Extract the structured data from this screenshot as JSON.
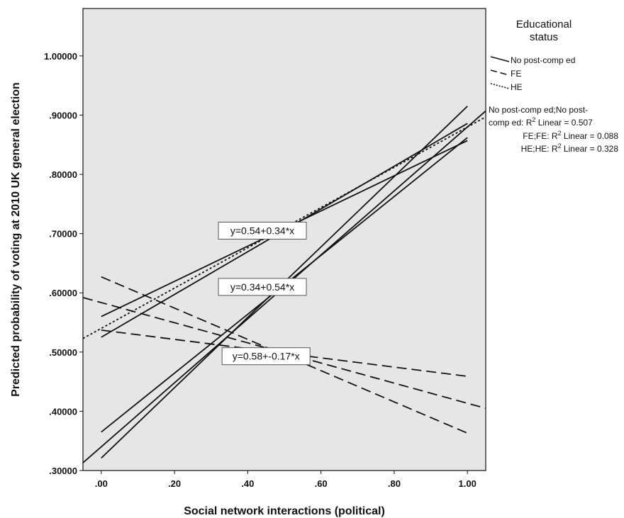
{
  "chart_data": {
    "type": "line",
    "xlabel": "Social network interactions (political)",
    "ylabel": "Predicted probability of voting at 2010 UK general election",
    "xlim": [
      -0.05,
      1.05
    ],
    "ylim": [
      0.3,
      1.08
    ],
    "x_ticks": [
      ".00",
      ".20",
      ".40",
      ".60",
      ".80",
      "1.00"
    ],
    "x_tick_values": [
      0,
      0.2,
      0.4,
      0.6,
      0.8,
      1.0
    ],
    "y_ticks": [
      ".30000",
      ".40000",
      ".50000",
      ".60000",
      ".70000",
      ".80000",
      ".90000",
      "1.00000"
    ],
    "y_tick_values": [
      0.3,
      0.4,
      0.5,
      0.6,
      0.7,
      0.8,
      0.9,
      1.0
    ],
    "grid": false,
    "plot_background": "#e6e6e6",
    "legend": {
      "title_line1": "Educational",
      "title_line2": "status",
      "placement": "right",
      "entries": [
        {
          "label": "No post-comp ed",
          "style": "solid"
        },
        {
          "label": "FE",
          "style": "dashed"
        },
        {
          "label": "HE",
          "style": "dotted"
        }
      ]
    },
    "r2_legend": {
      "line1": "No post-comp ed;No post-",
      "line2": "comp ed: R",
      "line2_suffix": " Linear = 0.507",
      "line3": "FE;FE: R",
      "line3_suffix": " Linear = 0.088",
      "line4": "HE;HE: R",
      "line4_suffix": " Linear = 0.328",
      "superscript": "2"
    },
    "series": [
      {
        "name": "No post-comp ed",
        "style": "solid",
        "role": "fit",
        "x": [
          -0.05,
          1.05
        ],
        "y": [
          0.313,
          0.907
        ]
      },
      {
        "name": "No post-comp ed",
        "style": "solid",
        "role": "ci",
        "x": [
          0,
          1.0
        ],
        "y": [
          0.365,
          0.862
        ]
      },
      {
        "name": "No post-comp ed",
        "style": "solid",
        "role": "ci",
        "x": [
          0,
          1.0
        ],
        "y": [
          0.321,
          0.915
        ]
      },
      {
        "name": "FE",
        "style": "dashed",
        "role": "fit",
        "x": [
          -0.05,
          1.05
        ],
        "y": [
          0.592,
          0.405
        ]
      },
      {
        "name": "FE",
        "style": "dashed",
        "role": "ci",
        "x": [
          0,
          1.0
        ],
        "y": [
          0.627,
          0.363
        ]
      },
      {
        "name": "FE",
        "style": "dashed",
        "role": "ci",
        "x": [
          0,
          1.0
        ],
        "y": [
          0.537,
          0.459
        ]
      },
      {
        "name": "HE",
        "style": "dotted",
        "role": "fit",
        "x": [
          -0.05,
          1.05
        ],
        "y": [
          0.523,
          0.897
        ]
      },
      {
        "name": "HE",
        "style": "solid",
        "role": "ci",
        "x": [
          0,
          1.0
        ],
        "y": [
          0.56,
          0.857
        ]
      },
      {
        "name": "HE",
        "style": "solid",
        "role": "ci",
        "x": [
          0,
          1.0
        ],
        "y": [
          0.525,
          0.886
        ]
      }
    ],
    "annotations": [
      {
        "text": "y=0.54+0.34*x",
        "x": 0.44,
        "y": 0.705
      },
      {
        "text": "y=0.34+0.54*x",
        "x": 0.44,
        "y": 0.61
      },
      {
        "text": "y=0.58+-0.17*x",
        "x": 0.45,
        "y": 0.493
      }
    ]
  }
}
